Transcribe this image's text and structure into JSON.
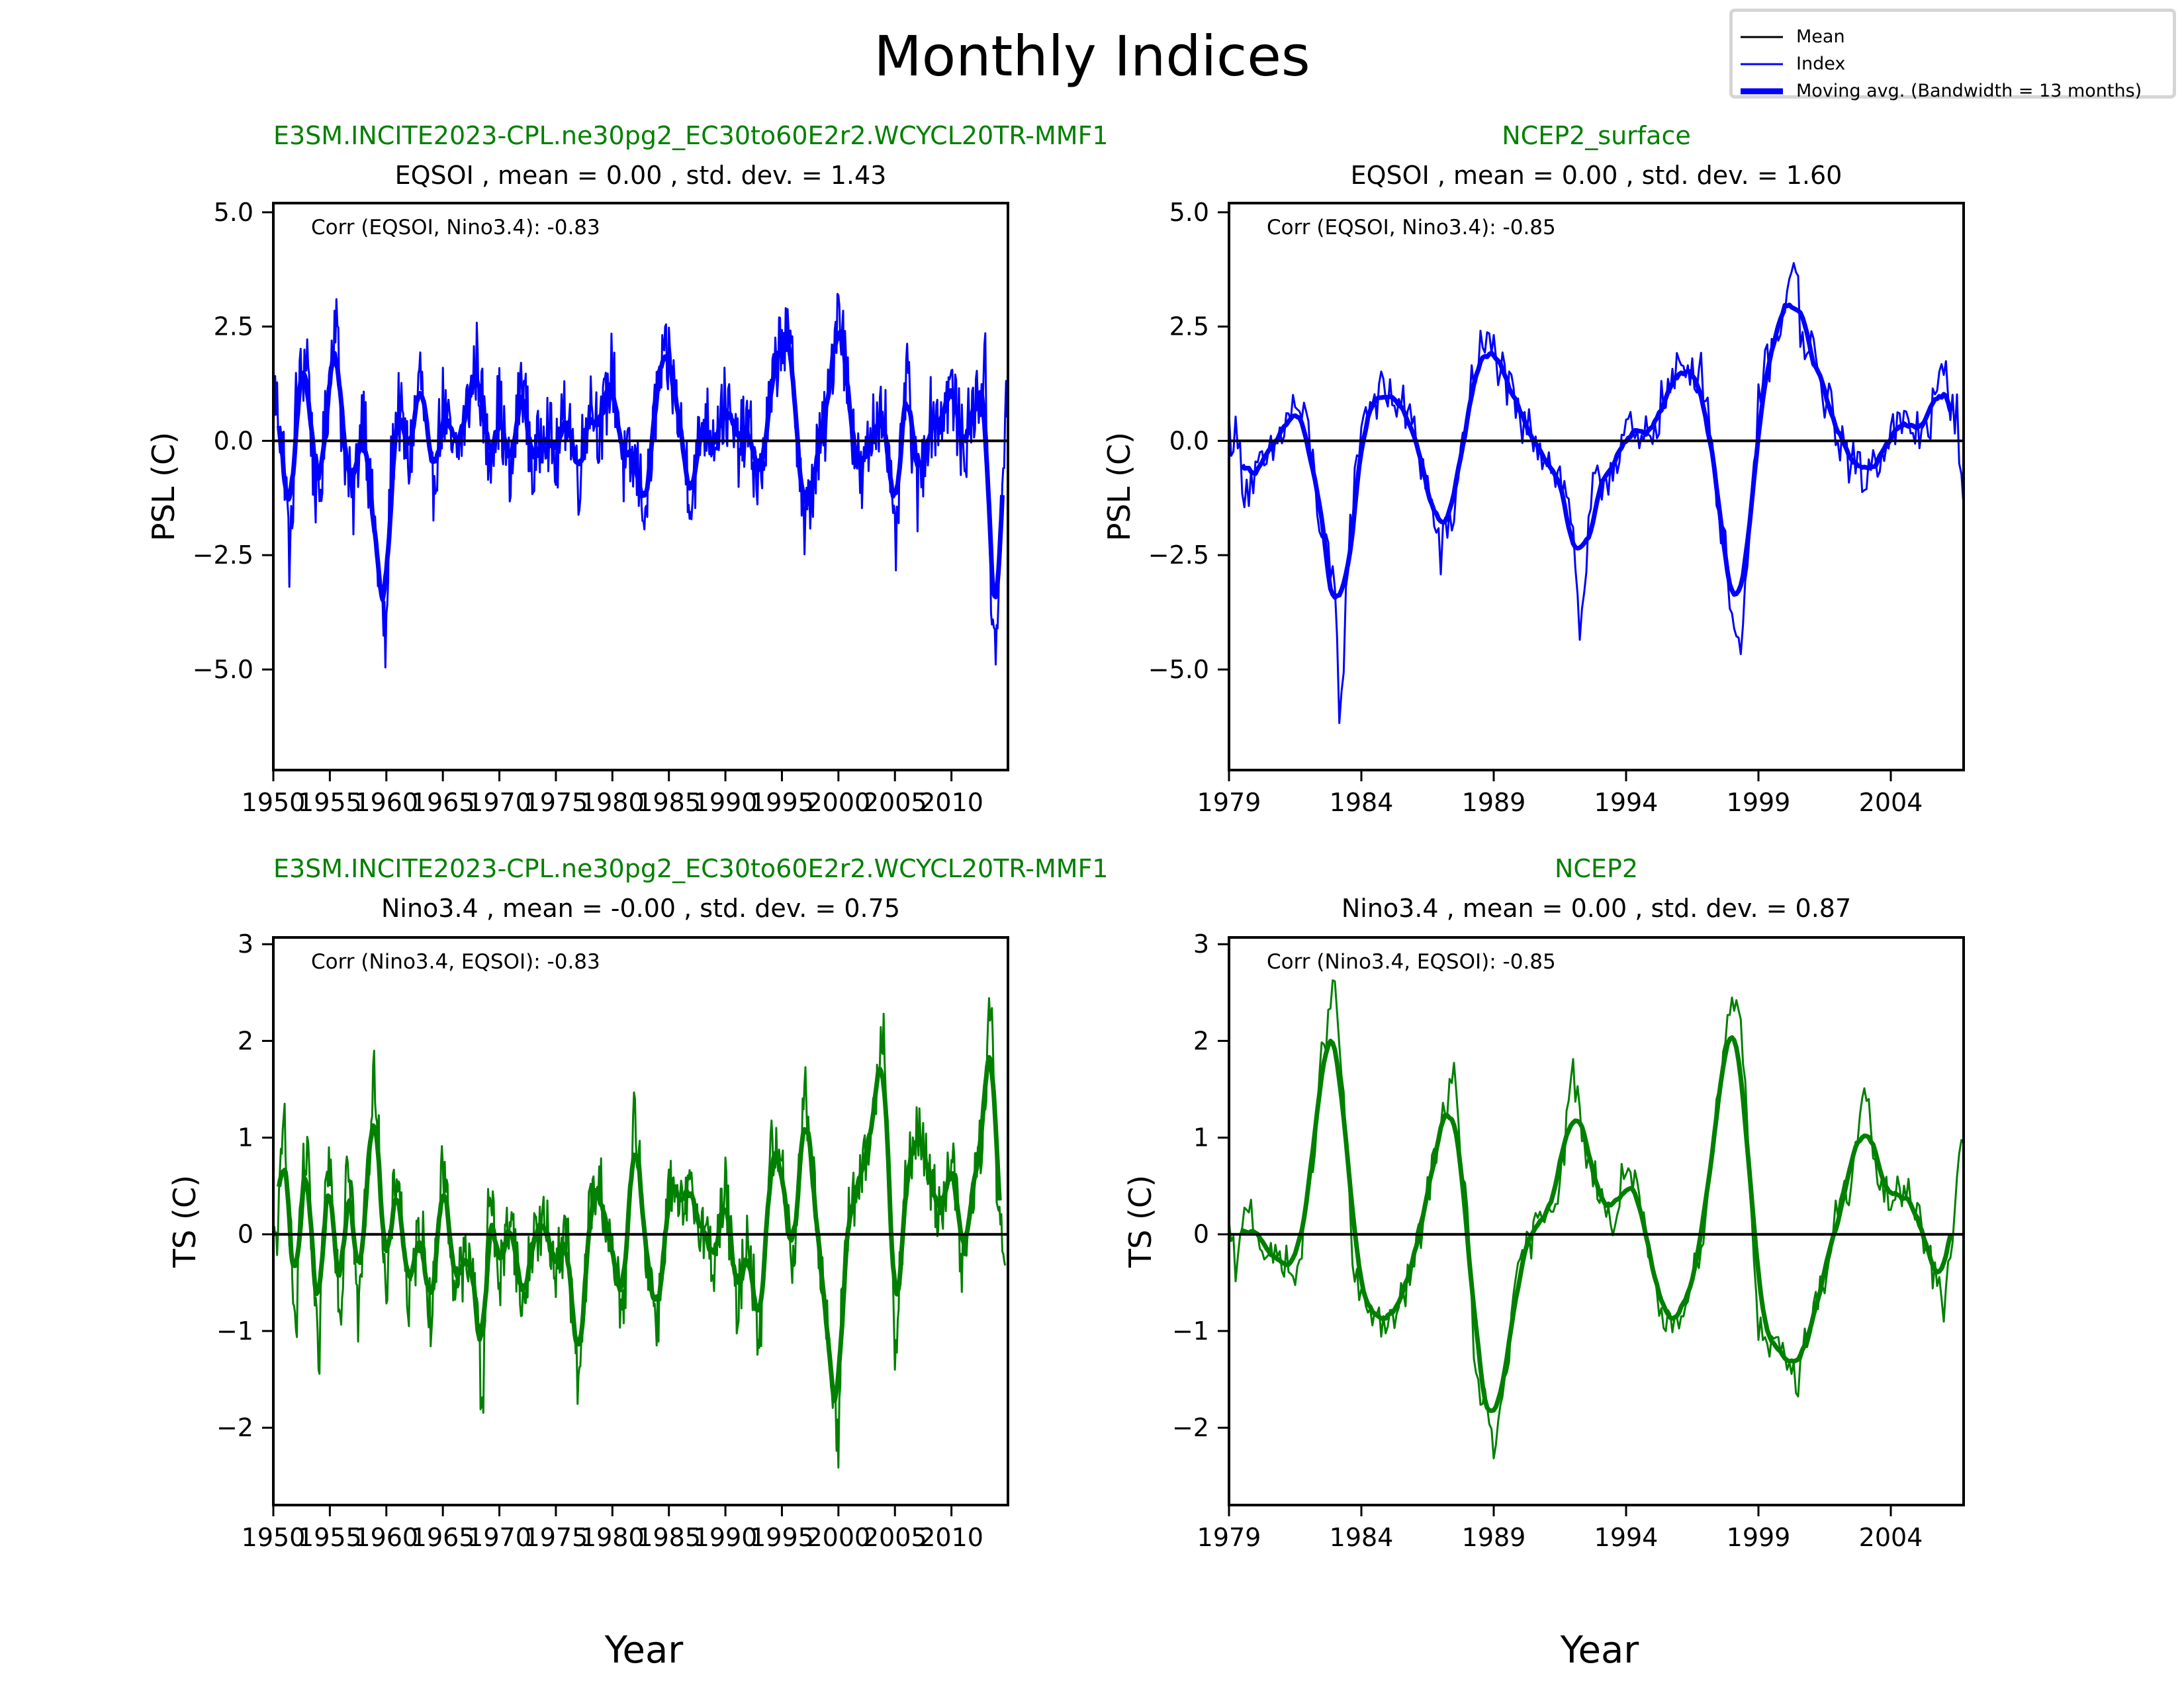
{
  "figure": {
    "suptitle": "Monthly Indices",
    "xlabel_left": "Year",
    "xlabel_right": "Year"
  },
  "legend": {
    "entries": [
      {
        "label": "Mean",
        "color": "#000000",
        "style": "thin"
      },
      {
        "label": "Index",
        "color": "#0000ff",
        "style": "thin"
      },
      {
        "label": "Moving avg. (Bandwidth =  13 months)",
        "color": "#0000ff",
        "style": "thick"
      }
    ]
  },
  "colors": {
    "eqsoi": "#0000ff",
    "nino": "#008000",
    "mean": "#000000",
    "dataset_title": "#008000"
  },
  "chart_data": [
    {
      "id": "model-eqsoi",
      "type": "line",
      "dataset": "E3SM.INCITE2023-CPL.ne30pg2_EC30to60E2r2.WCYCL20TR-MMF1",
      "title": "EQSOI , mean = 0.00 , std. dev. = 1.43",
      "annotation": "Corr (EQSOI, Nino3.4): -0.83",
      "xlabel": "",
      "ylabel": "PSL (C)",
      "xlim": [
        1950,
        2015
      ],
      "ylim": [
        -7.2,
        5.2
      ],
      "xticks": [
        1950,
        1955,
        1960,
        1965,
        1970,
        1975,
        1980,
        1985,
        1990,
        1995,
        2000,
        2005,
        2010
      ],
      "yticks": [
        5.0,
        2.5,
        0.0,
        -2.5,
        -5.0
      ],
      "ytick_labels": [
        "5.0",
        "2.5",
        "0.0",
        "−2.5",
        "−5.0"
      ],
      "mean_line": 0.0,
      "grid": false,
      "color": "#0000ff",
      "series_keypoints": {
        "x": [
          1950,
          1950.5,
          1951,
          1951.5,
          1952,
          1953,
          1953.5,
          1954,
          1955,
          1955.5,
          1956,
          1957,
          1958,
          1958.5,
          1959,
          1959.5,
          1960,
          1960.3,
          1961,
          1962,
          1963,
          1964,
          1965,
          1966,
          1967,
          1968,
          1969,
          1970,
          1971,
          1972,
          1973,
          1974,
          1975,
          1976,
          1977,
          1978,
          1979,
          1980,
          1981,
          1982,
          1983,
          1984,
          1985,
          1986,
          1987,
          1988,
          1989,
          1990,
          1991,
          1992,
          1993,
          1994,
          1995,
          1996,
          1997,
          1998,
          1999,
          2000,
          2001,
          2002,
          2003,
          2004,
          2005,
          2006,
          2007,
          2008,
          2009,
          2010,
          2011,
          2012,
          2013,
          2013.5,
          2014,
          2014.5,
          2015
        ],
        "y": [
          1.2,
          0.5,
          -0.5,
          -2.8,
          0.8,
          2.0,
          -0.5,
          -1.5,
          1.5,
          3.0,
          0.5,
          -1.5,
          1.0,
          -1.0,
          -2.0,
          -3.5,
          -4.6,
          -1.0,
          0.8,
          -0.5,
          1.5,
          -1.2,
          0.8,
          -0.5,
          0.5,
          1.8,
          -0.3,
          0.8,
          -1.0,
          1.5,
          -0.8,
          0.6,
          -0.5,
          0.8,
          -0.8,
          1.0,
          0.2,
          1.6,
          -0.6,
          -0.5,
          -1.5,
          1.2,
          1.8,
          0.3,
          -1.2,
          0.5,
          0.2,
          0.8,
          -0.2,
          0.3,
          -1.0,
          0.8,
          2.5,
          1.5,
          -2.0,
          -0.5,
          0.5,
          3.2,
          0.8,
          -1.0,
          0.2,
          1.0,
          -2.5,
          1.5,
          -1.2,
          0.5,
          0.5,
          1.2,
          -0.2,
          0.7,
          1.5,
          -3.0,
          -4.8,
          -1.0,
          1.6
        ]
      },
      "moving_avg_bandwidth_months": 13
    },
    {
      "id": "obs-eqsoi",
      "type": "line",
      "dataset": "NCEP2_surface",
      "title": "EQSOI , mean = 0.00 , std. dev. = 1.60",
      "annotation": "Corr (EQSOI, Nino3.4): -0.85",
      "xlabel": "",
      "ylabel": "PSL (C)",
      "xlim": [
        1979,
        2006.75
      ],
      "ylim": [
        -7.2,
        5.2
      ],
      "xticks": [
        1979,
        1984,
        1989,
        1994,
        1999,
        2004
      ],
      "yticks": [
        5.0,
        2.5,
        0.0,
        -2.5,
        -5.0
      ],
      "ytick_labels": [
        "5.0",
        "2.5",
        "0.0",
        "−2.5",
        "−5.0"
      ],
      "mean_line": 0.0,
      "grid": false,
      "color": "#0000ff",
      "series_keypoints": {
        "x": [
          1979,
          1979.3,
          1979.6,
          1980,
          1980.5,
          1981,
          1981.5,
          1982,
          1982.5,
          1983,
          1983.2,
          1983.5,
          1984,
          1984.5,
          1985,
          1985.5,
          1986,
          1986.5,
          1987,
          1987.5,
          1988,
          1988.5,
          1989,
          1989.5,
          1990,
          1990.5,
          1991,
          1991.5,
          1992,
          1992.3,
          1992.7,
          1993,
          1993.5,
          1994,
          1994.5,
          1995,
          1995.5,
          1996,
          1996.5,
          1997,
          1997.5,
          1998,
          1998.3,
          1998.6,
          1999,
          1999.5,
          2000,
          2000.3,
          2000.7,
          2001,
          2001.5,
          2002,
          2002.5,
          2003,
          2003.5,
          2004,
          2004.5,
          2005,
          2005.5,
          2006,
          2006.5,
          2006.75
        ],
        "y": [
          0.3,
          0.0,
          -1.0,
          -0.8,
          -0.5,
          0.2,
          0.8,
          0.2,
          -2.0,
          -3.5,
          -6.2,
          -2.5,
          0.5,
          1.0,
          1.0,
          0.8,
          0.2,
          -1.0,
          -2.5,
          -1.5,
          0.8,
          2.0,
          2.0,
          1.2,
          0.3,
          0.2,
          -0.3,
          -0.8,
          -1.8,
          -4.5,
          -1.2,
          -1.0,
          -0.5,
          0.3,
          -0.2,
          0.3,
          1.0,
          1.5,
          1.7,
          1.3,
          -1.5,
          -3.5,
          -4.8,
          -3.0,
          1.0,
          2.0,
          2.5,
          4.4,
          1.8,
          2.0,
          1.0,
          0.2,
          -0.5,
          -0.8,
          -0.3,
          0.2,
          0.3,
          0.2,
          0.5,
          1.5,
          0.5,
          -1.0
        ]
      },
      "moving_avg_bandwidth_months": 13
    },
    {
      "id": "model-nino34",
      "type": "line",
      "dataset": "E3SM.INCITE2023-CPL.ne30pg2_EC30to60E2r2.WCYCL20TR-MMF1",
      "title": "Nino3.4 , mean = -0.00 , std. dev. = 0.75",
      "annotation": "Corr (Nino3.4, EQSOI): -0.83",
      "xlabel": "",
      "ylabel": "TS (C)",
      "xlim": [
        1950,
        2015
      ],
      "ylim": [
        -2.8,
        3.07
      ],
      "xticks": [
        1950,
        1955,
        1960,
        1965,
        1970,
        1975,
        1980,
        1985,
        1990,
        1995,
        2000,
        2005,
        2010
      ],
      "yticks": [
        3,
        2,
        1,
        0,
        -1,
        -2
      ],
      "ytick_labels": [
        "3",
        "2",
        "1",
        "0",
        "−1",
        "−2"
      ],
      "mean_line": 0.0,
      "grid": false,
      "color": "#008000",
      "series_keypoints": {
        "x": [
          1950,
          1950.5,
          1951,
          1951.5,
          1952,
          1952.5,
          1953,
          1954,
          1954.5,
          1955,
          1956,
          1956.5,
          1957,
          1957.5,
          1958,
          1959,
          1959.5,
          1960,
          1960.5,
          1961,
          1962,
          1963,
          1964,
          1965,
          1966,
          1967,
          1968,
          1968.5,
          1969,
          1970,
          1971,
          1972,
          1973,
          1974,
          1975,
          1976,
          1977,
          1978,
          1979,
          1980,
          1981,
          1982,
          1983,
          1984,
          1985,
          1986,
          1987,
          1988,
          1989,
          1990,
          1991,
          1992,
          1993,
          1994,
          1995,
          1996,
          1997,
          1998,
          1999,
          2000,
          2000.3,
          2001,
          2002,
          2003,
          2004,
          2004.5,
          2005,
          2006,
          2007,
          2008,
          2009,
          2010,
          2011,
          2012,
          2013,
          2013.5,
          2014,
          2014.8
        ],
        "y": [
          -0.2,
          0.2,
          1.3,
          0.0,
          -1.1,
          0.5,
          0.8,
          -1.5,
          0.3,
          0.8,
          -0.9,
          1.0,
          0.4,
          -1.0,
          0.1,
          1.7,
          0.5,
          -0.8,
          0.2,
          0.7,
          -0.8,
          0.2,
          -0.9,
          0.8,
          -0.5,
          -0.3,
          -0.5,
          -2.0,
          0.6,
          -0.5,
          0.3,
          -0.8,
          0.0,
          0.1,
          -0.3,
          0.0,
          -1.7,
          0.3,
          0.5,
          -0.3,
          -0.8,
          1.3,
          -0.2,
          -0.9,
          0.5,
          0.2,
          0.4,
          0.1,
          -0.3,
          0.5,
          -0.8,
          0.1,
          -1.2,
          0.9,
          0.7,
          -0.3,
          1.5,
          0.3,
          -1.0,
          -2.35,
          -0.5,
          0.3,
          0.5,
          1.1,
          2.3,
          0.5,
          -1.3,
          0.6,
          1.1,
          0.6,
          0.2,
          0.9,
          -0.4,
          0.5,
          1.3,
          2.6,
          0.5,
          -0.7
        ]
      },
      "moving_avg_bandwidth_months": 13
    },
    {
      "id": "obs-nino34",
      "type": "line",
      "dataset": "NCEP2",
      "title": "Nino3.4 , mean = 0.00 , std. dev. = 0.87",
      "annotation": "Corr (Nino3.4, EQSOI): -0.85",
      "xlabel": "",
      "ylabel": "TS (C)",
      "xlim": [
        1979,
        2006.75
      ],
      "ylim": [
        -2.8,
        3.07
      ],
      "xticks": [
        1979,
        1984,
        1989,
        1994,
        1999,
        2004
      ],
      "yticks": [
        3,
        2,
        1,
        0,
        -1,
        -2
      ],
      "ytick_labels": [
        "3",
        "2",
        "1",
        "0",
        "−1",
        "−2"
      ],
      "mean_line": 0.0,
      "grid": false,
      "color": "#008000",
      "series_keypoints": {
        "x": [
          1979,
          1979.3,
          1979.7,
          1980,
          1980.5,
          1981,
          1981.5,
          1982,
          1982.5,
          1983,
          1983.3,
          1983.7,
          1984,
          1984.5,
          1985,
          1985.5,
          1986,
          1986.5,
          1987,
          1987.5,
          1988,
          1988.3,
          1988.7,
          1989,
          1989.5,
          1990,
          1990.5,
          1991,
          1991.5,
          1992,
          1992.5,
          1993,
          1993.5,
          1994,
          1994.5,
          1995,
          1995.5,
          1996,
          1996.5,
          1997,
          1997.5,
          1998,
          1998.3,
          1998.7,
          1999,
          1999.5,
          2000,
          2000.5,
          2001,
          2001.5,
          2002,
          2002.5,
          2003,
          2003.5,
          2004,
          2004.5,
          2005,
          2005.5,
          2006,
          2006.5,
          2006.75
        ],
        "y": [
          0.0,
          -0.4,
          0.4,
          0.1,
          -0.3,
          -0.2,
          -0.5,
          0.3,
          1.8,
          2.6,
          1.5,
          -0.4,
          -0.7,
          -0.8,
          -1.0,
          -0.7,
          -0.3,
          0.4,
          1.2,
          1.6,
          0.2,
          -1.5,
          -1.8,
          -2.3,
          -1.3,
          -0.3,
          0.0,
          0.3,
          0.5,
          1.7,
          0.8,
          0.5,
          0.0,
          0.8,
          0.3,
          -0.5,
          -1.0,
          -0.8,
          -0.5,
          0.2,
          1.5,
          2.5,
          2.4,
          0.5,
          -1.0,
          -1.2,
          -1.3,
          -1.5,
          -0.8,
          -0.5,
          0.3,
          0.5,
          1.5,
          0.6,
          0.3,
          0.5,
          0.3,
          -0.3,
          -0.8,
          0.5,
          1.05
        ]
      },
      "moving_avg_bandwidth_months": 13
    }
  ],
  "panels": [
    {
      "dataset": "E3SM.INCITE2023-CPL.ne30pg2_EC30to60E2r2.WCYCL20TR-MMF1",
      "title": "EQSOI , mean = 0.00 , std. dev. = 1.43",
      "annotation": "Corr (EQSOI, Nino3.4): -0.83",
      "ylabel": "PSL (C)"
    },
    {
      "dataset": "NCEP2_surface",
      "title": "EQSOI , mean = 0.00 , std. dev. = 1.60",
      "annotation": "Corr (EQSOI, Nino3.4): -0.85",
      "ylabel": "PSL (C)"
    },
    {
      "dataset": "E3SM.INCITE2023-CPL.ne30pg2_EC30to60E2r2.WCYCL20TR-MMF1",
      "title": "Nino3.4 , mean = -0.00 , std. dev. = 0.75",
      "annotation": "Corr (Nino3.4, EQSOI): -0.83",
      "ylabel": "TS (C)"
    },
    {
      "dataset": "NCEP2",
      "title": "Nino3.4 , mean = 0.00 , std. dev. = 0.87",
      "annotation": "Corr (Nino3.4, EQSOI): -0.85",
      "ylabel": "TS (C)"
    }
  ]
}
